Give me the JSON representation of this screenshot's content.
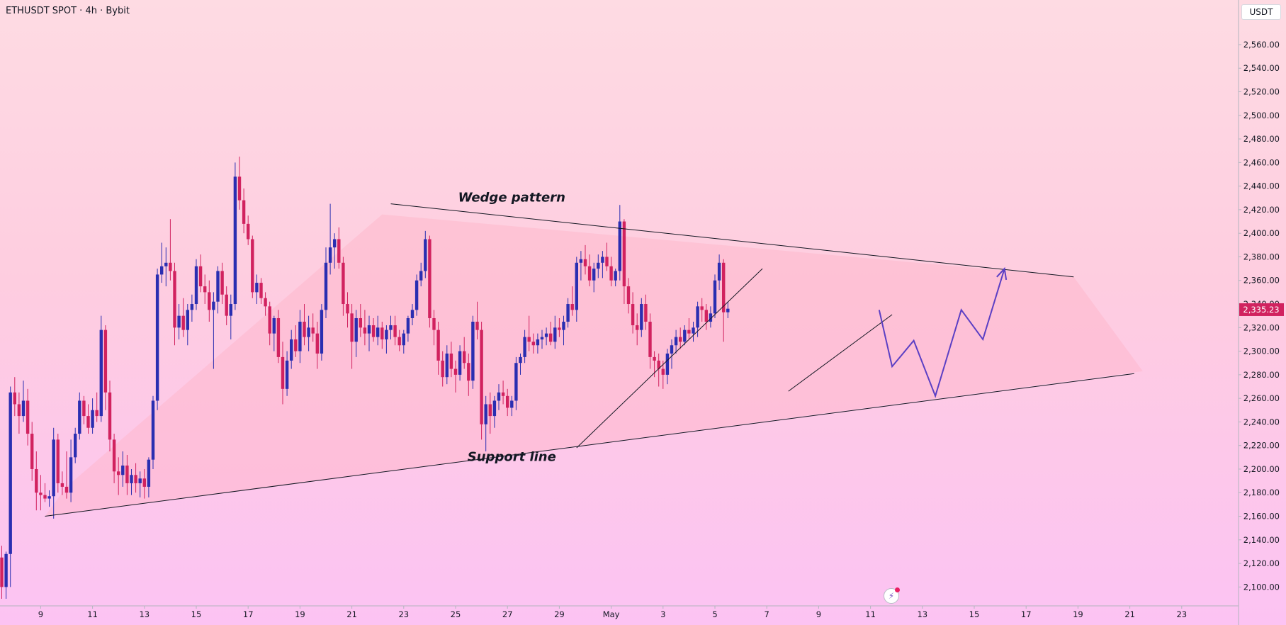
{
  "header": {
    "symbol_line": "ETHUSDT SPOT · 4h · Bybit",
    "currency_button": "USDT"
  },
  "colors": {
    "up": "#2a2eb1",
    "down": "#d1225f",
    "drawing": "#131722",
    "forecast": "#5b3fc4",
    "wedge_fill": "rgba(255,180,200,0.45)",
    "price_tag": "#d1225f"
  },
  "icons": {
    "lightning": "lightning-icon"
  },
  "chart_data": {
    "type": "candlestick",
    "title": "ETHUSDT SPOT · 4h · Bybit",
    "interval": "4h",
    "exchange": "Bybit",
    "ylim": [
      2090,
      2575
    ],
    "y_ticks": [
      2100,
      2120,
      2140,
      2160,
      2180,
      2200,
      2220,
      2240,
      2260,
      2280,
      2300,
      2320,
      2340,
      2360,
      2380,
      2400,
      2420,
      2440,
      2460,
      2480,
      2500,
      2520,
      2540,
      2560
    ],
    "x_ticks": [
      {
        "label": "9",
        "bar": 9
      },
      {
        "label": "11",
        "bar": 21
      },
      {
        "label": "13",
        "bar": 33
      },
      {
        "label": "15",
        "bar": 45
      },
      {
        "label": "17",
        "bar": 57
      },
      {
        "label": "19",
        "bar": 69
      },
      {
        "label": "21",
        "bar": 81
      },
      {
        "label": "23",
        "bar": 93
      },
      {
        "label": "25",
        "bar": 105
      },
      {
        "label": "27",
        "bar": 117
      },
      {
        "label": "29",
        "bar": 129
      },
      {
        "label": "May",
        "bar": 141
      },
      {
        "label": "3",
        "bar": 153
      },
      {
        "label": "5",
        "bar": 165
      },
      {
        "label": "7",
        "bar": 177
      },
      {
        "label": "9",
        "bar": 189
      },
      {
        "label": "11",
        "bar": 201
      },
      {
        "label": "13",
        "bar": 213
      },
      {
        "label": "15",
        "bar": 225
      },
      {
        "label": "17",
        "bar": 237
      },
      {
        "label": "19",
        "bar": 249
      },
      {
        "label": "21",
        "bar": 261
      },
      {
        "label": "23",
        "bar": 273
      }
    ],
    "last_price": "2,335.23",
    "last_price_value": 2335.23,
    "annotations": [
      {
        "text": "Wedge pattern",
        "bar": 118,
        "price": 2427
      },
      {
        "text": "Support line",
        "bar": 118,
        "price": 2207
      }
    ],
    "wedge": {
      "top_line": [
        [
          90,
          2425
        ],
        [
          248,
          2363
        ]
      ],
      "bottom_line": [
        [
          10,
          2160
        ],
        [
          262,
          2281
        ]
      ],
      "polygon": [
        [
          15,
          2185
        ],
        [
          88,
          2416
        ],
        [
          248,
          2363
        ],
        [
          264,
          2283
        ],
        [
          10,
          2160
        ]
      ]
    },
    "trendlines": [
      [
        [
          133,
          2218
        ],
        [
          176,
          2370
        ]
      ],
      [
        [
          182,
          2266
        ],
        [
          206,
          2331
        ]
      ]
    ],
    "forecast_path": [
      [
        203,
        2335
      ],
      [
        206,
        2287
      ],
      [
        211,
        2309
      ],
      [
        216,
        2262
      ],
      [
        222,
        2335
      ],
      [
        227,
        2310
      ],
      [
        232,
        2370
      ]
    ],
    "candles": [
      {
        "o": 2125,
        "h": 2135,
        "l": 2090,
        "c": 2100
      },
      {
        "o": 2100,
        "h": 2130,
        "l": 2090,
        "c": 2128
      },
      {
        "o": 2128,
        "h": 2270,
        "l": 2100,
        "c": 2265
      },
      {
        "o": 2265,
        "h": 2278,
        "l": 2245,
        "c": 2255
      },
      {
        "o": 2255,
        "h": 2265,
        "l": 2230,
        "c": 2245
      },
      {
        "o": 2245,
        "h": 2275,
        "l": 2240,
        "c": 2258
      },
      {
        "o": 2258,
        "h": 2268,
        "l": 2220,
        "c": 2230
      },
      {
        "o": 2230,
        "h": 2240,
        "l": 2190,
        "c": 2200
      },
      {
        "o": 2200,
        "h": 2215,
        "l": 2165,
        "c": 2180
      },
      {
        "o": 2180,
        "h": 2195,
        "l": 2165,
        "c": 2178
      },
      {
        "o": 2178,
        "h": 2188,
        "l": 2172,
        "c": 2175
      },
      {
        "o": 2175,
        "h": 2182,
        "l": 2168,
        "c": 2177
      },
      {
        "o": 2177,
        "h": 2235,
        "l": 2158,
        "c": 2225
      },
      {
        "o": 2225,
        "h": 2230,
        "l": 2180,
        "c": 2188
      },
      {
        "o": 2188,
        "h": 2198,
        "l": 2178,
        "c": 2185
      },
      {
        "o": 2185,
        "h": 2215,
        "l": 2175,
        "c": 2180
      },
      {
        "o": 2180,
        "h": 2225,
        "l": 2172,
        "c": 2210
      },
      {
        "o": 2210,
        "h": 2235,
        "l": 2205,
        "c": 2230
      },
      {
        "o": 2230,
        "h": 2265,
        "l": 2225,
        "c": 2258
      },
      {
        "o": 2258,
        "h": 2262,
        "l": 2238,
        "c": 2245
      },
      {
        "o": 2245,
        "h": 2255,
        "l": 2230,
        "c": 2235
      },
      {
        "o": 2235,
        "h": 2260,
        "l": 2230,
        "c": 2250
      },
      {
        "o": 2250,
        "h": 2265,
        "l": 2240,
        "c": 2245
      },
      {
        "o": 2245,
        "h": 2330,
        "l": 2240,
        "c": 2318
      },
      {
        "o": 2318,
        "h": 2322,
        "l": 2250,
        "c": 2265
      },
      {
        "o": 2265,
        "h": 2275,
        "l": 2215,
        "c": 2225
      },
      {
        "o": 2225,
        "h": 2230,
        "l": 2188,
        "c": 2198
      },
      {
        "o": 2198,
        "h": 2210,
        "l": 2178,
        "c": 2195
      },
      {
        "o": 2195,
        "h": 2215,
        "l": 2185,
        "c": 2203
      },
      {
        "o": 2203,
        "h": 2212,
        "l": 2178,
        "c": 2188
      },
      {
        "o": 2188,
        "h": 2200,
        "l": 2178,
        "c": 2195
      },
      {
        "o": 2195,
        "h": 2205,
        "l": 2180,
        "c": 2188
      },
      {
        "o": 2188,
        "h": 2198,
        "l": 2176,
        "c": 2192
      },
      {
        "o": 2192,
        "h": 2200,
        "l": 2175,
        "c": 2185
      },
      {
        "o": 2185,
        "h": 2210,
        "l": 2176,
        "c": 2208
      },
      {
        "o": 2208,
        "h": 2262,
        "l": 2200,
        "c": 2258
      },
      {
        "o": 2258,
        "h": 2370,
        "l": 2250,
        "c": 2365
      },
      {
        "o": 2365,
        "h": 2392,
        "l": 2358,
        "c": 2372
      },
      {
        "o": 2372,
        "h": 2388,
        "l": 2355,
        "c": 2375
      },
      {
        "o": 2375,
        "h": 2412,
        "l": 2360,
        "c": 2368
      },
      {
        "o": 2368,
        "h": 2375,
        "l": 2305,
        "c": 2320
      },
      {
        "o": 2320,
        "h": 2340,
        "l": 2310,
        "c": 2330
      },
      {
        "o": 2330,
        "h": 2345,
        "l": 2312,
        "c": 2318
      },
      {
        "o": 2318,
        "h": 2340,
        "l": 2305,
        "c": 2335
      },
      {
        "o": 2335,
        "h": 2348,
        "l": 2325,
        "c": 2340
      },
      {
        "o": 2340,
        "h": 2378,
        "l": 2335,
        "c": 2372
      },
      {
        "o": 2372,
        "h": 2382,
        "l": 2350,
        "c": 2355
      },
      {
        "o": 2355,
        "h": 2365,
        "l": 2340,
        "c": 2350
      },
      {
        "o": 2350,
        "h": 2360,
        "l": 2325,
        "c": 2335
      },
      {
        "o": 2335,
        "h": 2350,
        "l": 2285,
        "c": 2342
      },
      {
        "o": 2342,
        "h": 2372,
        "l": 2332,
        "c": 2368
      },
      {
        "o": 2368,
        "h": 2375,
        "l": 2340,
        "c": 2348
      },
      {
        "o": 2348,
        "h": 2355,
        "l": 2322,
        "c": 2330
      },
      {
        "o": 2330,
        "h": 2348,
        "l": 2310,
        "c": 2340
      },
      {
        "o": 2340,
        "h": 2460,
        "l": 2335,
        "c": 2448
      },
      {
        "o": 2448,
        "h": 2465,
        "l": 2420,
        "c": 2428
      },
      {
        "o": 2428,
        "h": 2438,
        "l": 2400,
        "c": 2408
      },
      {
        "o": 2408,
        "h": 2415,
        "l": 2390,
        "c": 2395
      },
      {
        "o": 2395,
        "h": 2398,
        "l": 2345,
        "c": 2350
      },
      {
        "o": 2350,
        "h": 2365,
        "l": 2340,
        "c": 2358
      },
      {
        "o": 2358,
        "h": 2362,
        "l": 2340,
        "c": 2345
      },
      {
        "o": 2345,
        "h": 2350,
        "l": 2330,
        "c": 2338
      },
      {
        "o": 2338,
        "h": 2342,
        "l": 2305,
        "c": 2315
      },
      {
        "o": 2315,
        "h": 2330,
        "l": 2300,
        "c": 2328
      },
      {
        "o": 2328,
        "h": 2335,
        "l": 2290,
        "c": 2295
      },
      {
        "o": 2295,
        "h": 2308,
        "l": 2255,
        "c": 2268
      },
      {
        "o": 2268,
        "h": 2300,
        "l": 2262,
        "c": 2292
      },
      {
        "o": 2292,
        "h": 2318,
        "l": 2285,
        "c": 2310
      },
      {
        "o": 2310,
        "h": 2322,
        "l": 2295,
        "c": 2300
      },
      {
        "o": 2300,
        "h": 2335,
        "l": 2290,
        "c": 2325
      },
      {
        "o": 2325,
        "h": 2340,
        "l": 2305,
        "c": 2312
      },
      {
        "o": 2312,
        "h": 2330,
        "l": 2300,
        "c": 2320
      },
      {
        "o": 2320,
        "h": 2332,
        "l": 2308,
        "c": 2315
      },
      {
        "o": 2315,
        "h": 2325,
        "l": 2285,
        "c": 2298
      },
      {
        "o": 2298,
        "h": 2340,
        "l": 2292,
        "c": 2335
      },
      {
        "o": 2335,
        "h": 2388,
        "l": 2328,
        "c": 2375
      },
      {
        "o": 2375,
        "h": 2425,
        "l": 2365,
        "c": 2388
      },
      {
        "o": 2388,
        "h": 2400,
        "l": 2370,
        "c": 2395
      },
      {
        "o": 2395,
        "h": 2405,
        "l": 2370,
        "c": 2375
      },
      {
        "o": 2375,
        "h": 2380,
        "l": 2330,
        "c": 2340
      },
      {
        "o": 2340,
        "h": 2350,
        "l": 2320,
        "c": 2332
      },
      {
        "o": 2332,
        "h": 2340,
        "l": 2285,
        "c": 2308
      },
      {
        "o": 2308,
        "h": 2335,
        "l": 2295,
        "c": 2328
      },
      {
        "o": 2328,
        "h": 2340,
        "l": 2312,
        "c": 2320
      },
      {
        "o": 2320,
        "h": 2335,
        "l": 2305,
        "c": 2315
      },
      {
        "o": 2315,
        "h": 2330,
        "l": 2300,
        "c": 2322
      },
      {
        "o": 2322,
        "h": 2328,
        "l": 2308,
        "c": 2312
      },
      {
        "o": 2312,
        "h": 2330,
        "l": 2305,
        "c": 2320
      },
      {
        "o": 2320,
        "h": 2325,
        "l": 2302,
        "c": 2310
      },
      {
        "o": 2310,
        "h": 2322,
        "l": 2298,
        "c": 2318
      },
      {
        "o": 2318,
        "h": 2330,
        "l": 2310,
        "c": 2322
      },
      {
        "o": 2322,
        "h": 2330,
        "l": 2305,
        "c": 2312
      },
      {
        "o": 2312,
        "h": 2318,
        "l": 2300,
        "c": 2305
      },
      {
        "o": 2305,
        "h": 2318,
        "l": 2298,
        "c": 2315
      },
      {
        "o": 2315,
        "h": 2330,
        "l": 2308,
        "c": 2328
      },
      {
        "o": 2328,
        "h": 2340,
        "l": 2322,
        "c": 2335
      },
      {
        "o": 2335,
        "h": 2365,
        "l": 2330,
        "c": 2360
      },
      {
        "o": 2360,
        "h": 2375,
        "l": 2355,
        "c": 2368
      },
      {
        "o": 2368,
        "h": 2402,
        "l": 2362,
        "c": 2395
      },
      {
        "o": 2395,
        "h": 2398,
        "l": 2320,
        "c": 2328
      },
      {
        "o": 2328,
        "h": 2335,
        "l": 2305,
        "c": 2318
      },
      {
        "o": 2318,
        "h": 2325,
        "l": 2280,
        "c": 2292
      },
      {
        "o": 2292,
        "h": 2300,
        "l": 2270,
        "c": 2278
      },
      {
        "o": 2278,
        "h": 2305,
        "l": 2272,
        "c": 2298
      },
      {
        "o": 2298,
        "h": 2308,
        "l": 2278,
        "c": 2285
      },
      {
        "o": 2285,
        "h": 2292,
        "l": 2265,
        "c": 2280
      },
      {
        "o": 2280,
        "h": 2305,
        "l": 2275,
        "c": 2300
      },
      {
        "o": 2300,
        "h": 2312,
        "l": 2285,
        "c": 2290
      },
      {
        "o": 2290,
        "h": 2298,
        "l": 2262,
        "c": 2275
      },
      {
        "o": 2275,
        "h": 2330,
        "l": 2268,
        "c": 2325
      },
      {
        "o": 2325,
        "h": 2342,
        "l": 2310,
        "c": 2318
      },
      {
        "o": 2318,
        "h": 2325,
        "l": 2225,
        "c": 2238
      },
      {
        "o": 2238,
        "h": 2262,
        "l": 2215,
        "c": 2255
      },
      {
        "o": 2255,
        "h": 2265,
        "l": 2230,
        "c": 2245
      },
      {
        "o": 2245,
        "h": 2262,
        "l": 2235,
        "c": 2258
      },
      {
        "o": 2258,
        "h": 2272,
        "l": 2250,
        "c": 2265
      },
      {
        "o": 2265,
        "h": 2275,
        "l": 2255,
        "c": 2262
      },
      {
        "o": 2262,
        "h": 2268,
        "l": 2245,
        "c": 2252
      },
      {
        "o": 2252,
        "h": 2262,
        "l": 2245,
        "c": 2258
      },
      {
        "o": 2258,
        "h": 2295,
        "l": 2250,
        "c": 2290
      },
      {
        "o": 2290,
        "h": 2298,
        "l": 2280,
        "c": 2295
      },
      {
        "o": 2295,
        "h": 2318,
        "l": 2290,
        "c": 2312
      },
      {
        "o": 2312,
        "h": 2330,
        "l": 2300,
        "c": 2308
      },
      {
        "o": 2308,
        "h": 2315,
        "l": 2298,
        "c": 2305
      },
      {
        "o": 2305,
        "h": 2315,
        "l": 2298,
        "c": 2310
      },
      {
        "o": 2310,
        "h": 2318,
        "l": 2302,
        "c": 2312
      },
      {
        "o": 2312,
        "h": 2320,
        "l": 2305,
        "c": 2315
      },
      {
        "o": 2315,
        "h": 2325,
        "l": 2305,
        "c": 2308
      },
      {
        "o": 2308,
        "h": 2330,
        "l": 2302,
        "c": 2320
      },
      {
        "o": 2320,
        "h": 2328,
        "l": 2312,
        "c": 2318
      },
      {
        "o": 2318,
        "h": 2330,
        "l": 2305,
        "c": 2325
      },
      {
        "o": 2325,
        "h": 2345,
        "l": 2320,
        "c": 2340
      },
      {
        "o": 2340,
        "h": 2355,
        "l": 2330,
        "c": 2335
      },
      {
        "o": 2335,
        "h": 2380,
        "l": 2325,
        "c": 2375
      },
      {
        "o": 2375,
        "h": 2385,
        "l": 2360,
        "c": 2378
      },
      {
        "o": 2378,
        "h": 2390,
        "l": 2365,
        "c": 2372
      },
      {
        "o": 2372,
        "h": 2382,
        "l": 2355,
        "c": 2360
      },
      {
        "o": 2360,
        "h": 2375,
        "l": 2350,
        "c": 2370
      },
      {
        "o": 2370,
        "h": 2382,
        "l": 2362,
        "c": 2375
      },
      {
        "o": 2375,
        "h": 2385,
        "l": 2362,
        "c": 2380
      },
      {
        "o": 2380,
        "h": 2392,
        "l": 2368,
        "c": 2372
      },
      {
        "o": 2372,
        "h": 2380,
        "l": 2355,
        "c": 2360
      },
      {
        "o": 2360,
        "h": 2370,
        "l": 2355,
        "c": 2368
      },
      {
        "o": 2368,
        "h": 2424,
        "l": 2360,
        "c": 2410
      },
      {
        "o": 2410,
        "h": 2412,
        "l": 2340,
        "c": 2355
      },
      {
        "o": 2355,
        "h": 2362,
        "l": 2332,
        "c": 2340
      },
      {
        "o": 2340,
        "h": 2350,
        "l": 2315,
        "c": 2322
      },
      {
        "o": 2322,
        "h": 2332,
        "l": 2305,
        "c": 2318
      },
      {
        "o": 2318,
        "h": 2345,
        "l": 2312,
        "c": 2340
      },
      {
        "o": 2340,
        "h": 2348,
        "l": 2318,
        "c": 2325
      },
      {
        "o": 2325,
        "h": 2332,
        "l": 2285,
        "c": 2295
      },
      {
        "o": 2295,
        "h": 2300,
        "l": 2278,
        "c": 2292
      },
      {
        "o": 2292,
        "h": 2298,
        "l": 2270,
        "c": 2285
      },
      {
        "o": 2285,
        "h": 2292,
        "l": 2268,
        "c": 2280
      },
      {
        "o": 2280,
        "h": 2302,
        "l": 2272,
        "c": 2298
      },
      {
        "o": 2298,
        "h": 2310,
        "l": 2285,
        "c": 2305
      },
      {
        "o": 2305,
        "h": 2318,
        "l": 2298,
        "c": 2312
      },
      {
        "o": 2312,
        "h": 2320,
        "l": 2302,
        "c": 2308
      },
      {
        "o": 2308,
        "h": 2322,
        "l": 2305,
        "c": 2318
      },
      {
        "o": 2318,
        "h": 2328,
        "l": 2310,
        "c": 2315
      },
      {
        "o": 2315,
        "h": 2325,
        "l": 2308,
        "c": 2320
      },
      {
        "o": 2320,
        "h": 2342,
        "l": 2312,
        "c": 2338
      },
      {
        "o": 2338,
        "h": 2345,
        "l": 2325,
        "c": 2335
      },
      {
        "o": 2335,
        "h": 2340,
        "l": 2318,
        "c": 2325
      },
      {
        "o": 2325,
        "h": 2338,
        "l": 2320,
        "c": 2332
      },
      {
        "o": 2332,
        "h": 2365,
        "l": 2328,
        "c": 2360
      },
      {
        "o": 2360,
        "h": 2382,
        "l": 2352,
        "c": 2375
      },
      {
        "o": 2375,
        "h": 2378,
        "l": 2308,
        "c": 2333
      },
      {
        "o": 2333,
        "h": 2342,
        "l": 2328,
        "c": 2336
      }
    ]
  }
}
